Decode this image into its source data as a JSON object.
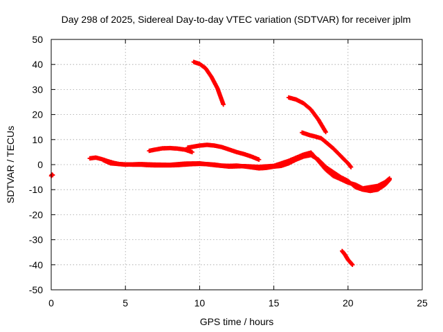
{
  "chart_data": {
    "type": "scatter",
    "title": "Day 298 of 2025, Sidereal Day-to-day VTEC variation (SDTVAR) for receiver jplm",
    "xlabel": "GPS time / hours",
    "ylabel": "SDTVAR / TECUs",
    "xlim": [
      0,
      25
    ],
    "ylim": [
      -50,
      50
    ],
    "xticks": [
      0,
      5,
      10,
      15,
      20,
      25
    ],
    "xtick_labels": [
      "0",
      "5",
      "10",
      "15",
      "20",
      "25"
    ],
    "yticks": [
      -50,
      -40,
      -30,
      -20,
      -10,
      0,
      10,
      20,
      30,
      40,
      50
    ],
    "ytick_labels": [
      "-50",
      "-40",
      "-30",
      "-20",
      "-10",
      "0",
      "10",
      "20",
      "30",
      "40",
      "50"
    ],
    "grid": true,
    "marker": "+",
    "color": "#ff0000",
    "series": [
      {
        "name": "isolated-start",
        "points": [
          [
            0.0,
            -4.5
          ],
          [
            0.05,
            -4.0
          ],
          [
            0.1,
            -4.2
          ]
        ]
      },
      {
        "name": "main-baseline",
        "points": [
          [
            2.6,
            2.5
          ],
          [
            3.0,
            2.8
          ],
          [
            3.4,
            2.2
          ],
          [
            3.8,
            1.4
          ],
          [
            4.2,
            0.7
          ],
          [
            4.6,
            0.2
          ],
          [
            5.0,
            0.1
          ],
          [
            5.5,
            0.0
          ],
          [
            6.0,
            0.0
          ],
          [
            6.5,
            -0.2
          ],
          [
            7.0,
            -0.3
          ],
          [
            7.5,
            -0.3
          ],
          [
            8.0,
            -0.3
          ],
          [
            8.5,
            -0.2
          ],
          [
            9.0,
            0.0
          ],
          [
            9.5,
            0.2
          ],
          [
            10.0,
            0.3
          ],
          [
            10.5,
            0.2
          ],
          [
            11.0,
            0.0
          ],
          [
            11.5,
            -0.4
          ],
          [
            12.0,
            -0.5
          ],
          [
            12.5,
            -0.4
          ],
          [
            13.0,
            -0.7
          ],
          [
            13.5,
            -1.1
          ],
          [
            14.0,
            -1.5
          ],
          [
            14.5,
            -1.3
          ],
          [
            15.0,
            -0.8
          ],
          [
            15.5,
            -0.5
          ],
          [
            16.0,
            0.5
          ],
          [
            16.5,
            2.0
          ],
          [
            17.0,
            3.2
          ],
          [
            17.5,
            3.8
          ],
          [
            18.0,
            2.0
          ],
          [
            18.5,
            -1.0
          ],
          [
            19.0,
            -3.0
          ],
          [
            19.5,
            -5.0
          ],
          [
            20.0,
            -6.5
          ],
          [
            20.5,
            -9.0
          ],
          [
            21.0,
            -10.0
          ],
          [
            21.5,
            -10.5
          ],
          [
            22.0,
            -10.0
          ],
          [
            22.5,
            -8.0
          ],
          [
            22.8,
            -6.0
          ]
        ]
      },
      {
        "name": "secondary-baseline",
        "points": [
          [
            3.5,
            1.8
          ],
          [
            4.0,
            0.5
          ],
          [
            5.0,
            0.0
          ],
          [
            6.0,
            0.2
          ],
          [
            7.0,
            0.0
          ],
          [
            8.0,
            -0.1
          ],
          [
            9.0,
            0.4
          ],
          [
            10.0,
            0.5
          ],
          [
            11.0,
            -0.2
          ],
          [
            12.0,
            -0.8
          ],
          [
            13.0,
            -0.6
          ],
          [
            14.0,
            -0.9
          ],
          [
            15.0,
            -0.5
          ],
          [
            16.0,
            1.5
          ],
          [
            17.0,
            4.0
          ],
          [
            17.5,
            4.8
          ],
          [
            18.0,
            1.5
          ],
          [
            18.5,
            -2.0
          ],
          [
            19.0,
            -4.5
          ],
          [
            19.5,
            -5.8
          ],
          [
            20.0,
            -7.2
          ],
          [
            20.5,
            -8.0
          ],
          [
            21.0,
            -9.5
          ],
          [
            21.5,
            -9.0
          ],
          [
            22.0,
            -8.5
          ],
          [
            22.5,
            -7.0
          ],
          [
            22.8,
            -5.5
          ]
        ]
      },
      {
        "name": "arc-6-10",
        "points": [
          [
            6.6,
            5.5
          ],
          [
            7.0,
            6.0
          ],
          [
            7.5,
            6.5
          ],
          [
            8.0,
            6.6
          ],
          [
            8.5,
            6.4
          ],
          [
            9.0,
            6.0
          ],
          [
            9.5,
            5.0
          ]
        ]
      },
      {
        "name": "arc-9-14",
        "points": [
          [
            9.2,
            6.8
          ],
          [
            9.6,
            7.2
          ],
          [
            10.0,
            7.6
          ],
          [
            10.5,
            7.9
          ],
          [
            11.0,
            7.6
          ],
          [
            11.5,
            7.0
          ],
          [
            12.0,
            6.0
          ],
          [
            12.5,
            5.0
          ],
          [
            13.0,
            4.2
          ],
          [
            13.5,
            3.2
          ],
          [
            14.0,
            2.0
          ]
        ]
      },
      {
        "name": "high-drop",
        "points": [
          [
            9.6,
            41.0
          ],
          [
            10.0,
            40.2
          ],
          [
            10.4,
            38.5
          ],
          [
            10.8,
            35.0
          ],
          [
            11.2,
            30.5
          ],
          [
            11.6,
            24.0
          ]
        ]
      },
      {
        "name": "descending-16-18",
        "points": [
          [
            16.0,
            26.8
          ],
          [
            16.5,
            26.0
          ],
          [
            17.0,
            24.5
          ],
          [
            17.5,
            22.0
          ],
          [
            18.0,
            18.0
          ],
          [
            18.5,
            13.0
          ]
        ]
      },
      {
        "name": "descending-17-20",
        "points": [
          [
            16.9,
            12.8
          ],
          [
            17.4,
            11.8
          ],
          [
            17.8,
            11.2
          ],
          [
            18.2,
            10.5
          ],
          [
            18.6,
            8.5
          ],
          [
            19.0,
            6.5
          ],
          [
            19.5,
            3.5
          ],
          [
            20.0,
            0.5
          ],
          [
            20.2,
            -1.0
          ]
        ]
      },
      {
        "name": "low-segment",
        "points": [
          [
            19.6,
            -34.5
          ],
          [
            19.8,
            -36.0
          ],
          [
            20.0,
            -38.0
          ],
          [
            20.3,
            -40.0
          ]
        ]
      }
    ]
  }
}
